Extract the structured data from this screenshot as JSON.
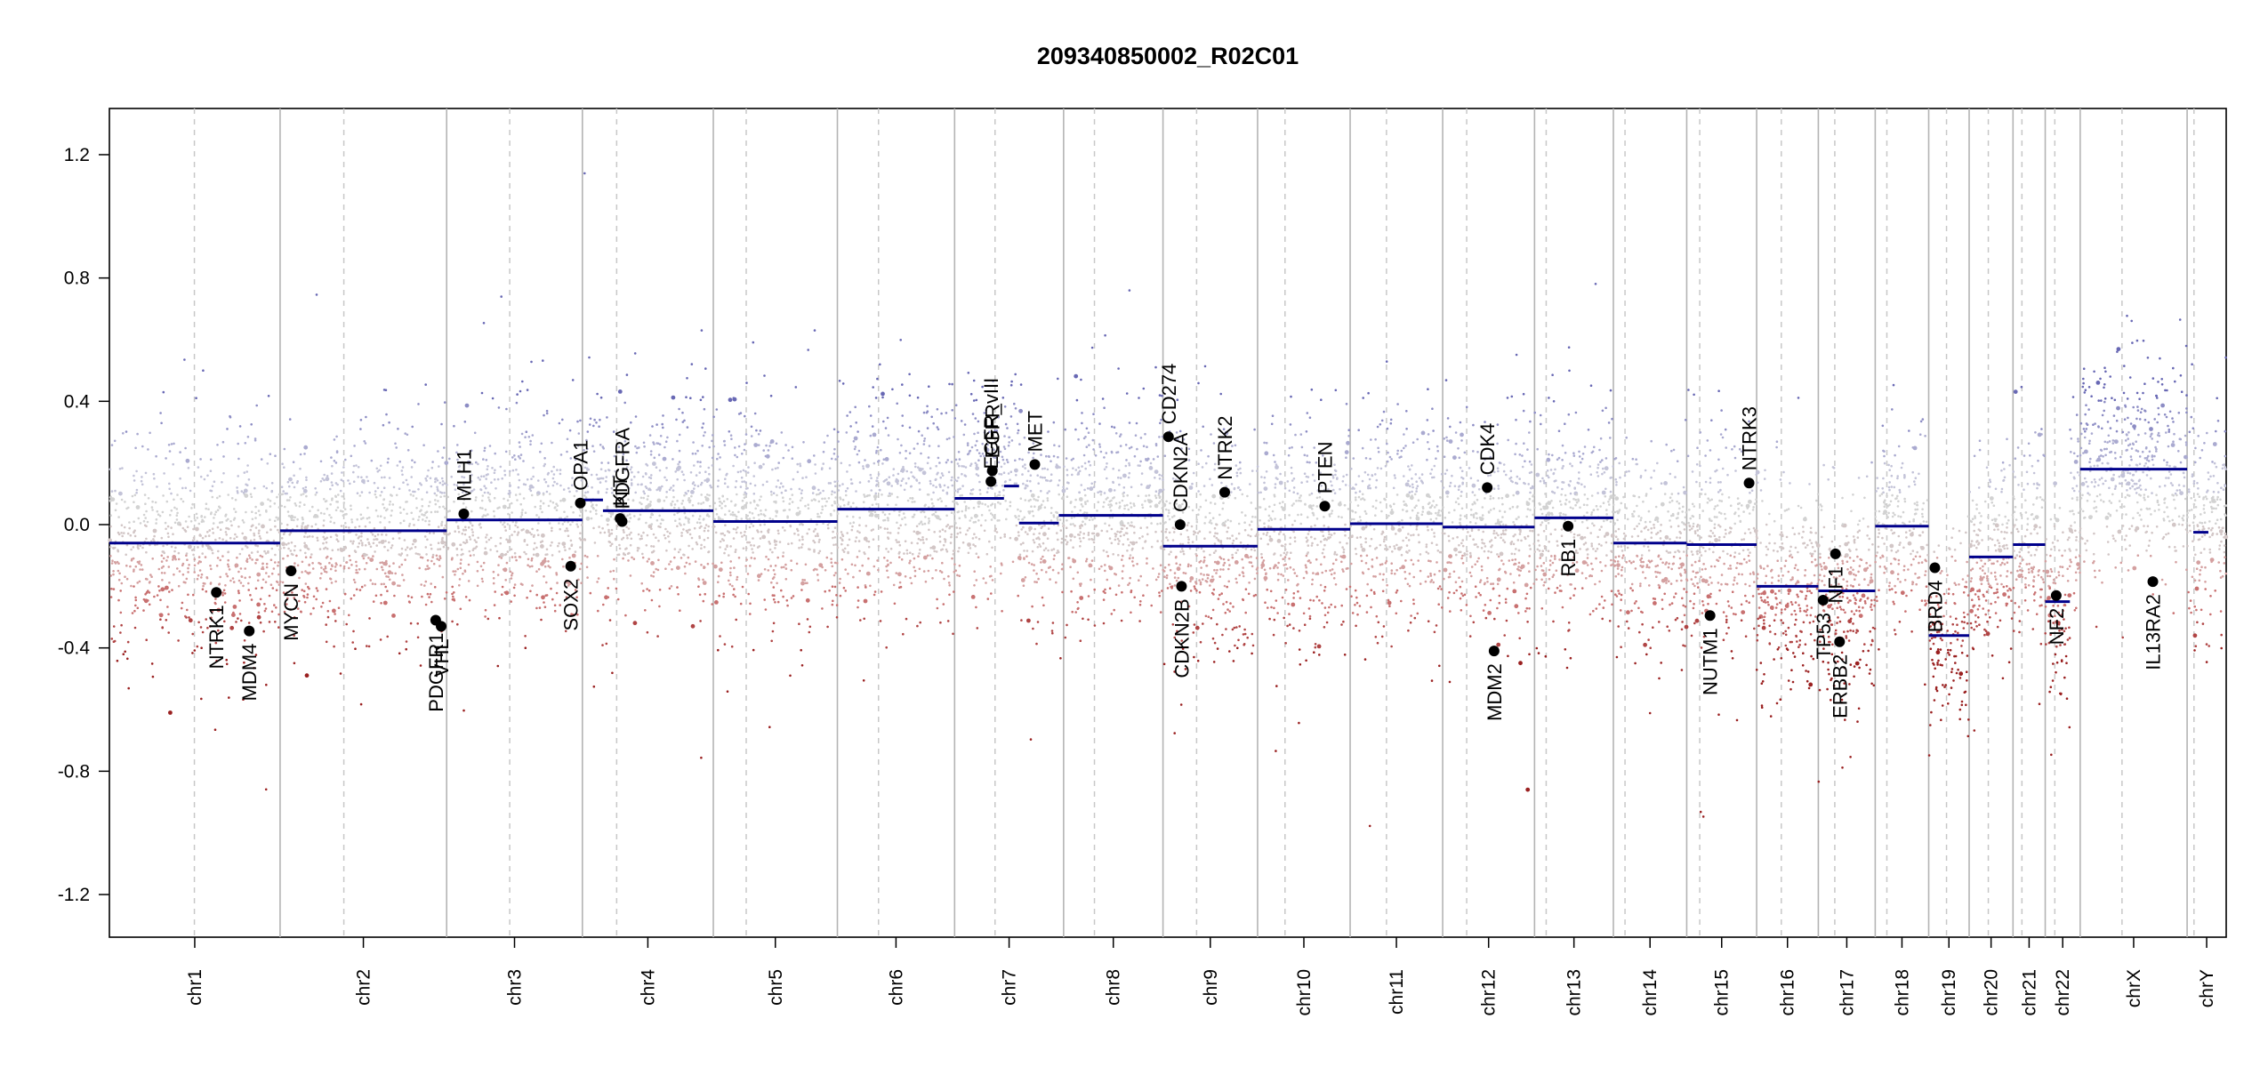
{
  "chart_data": {
    "type": "scatter",
    "title": "209340850002_R02C01",
    "xlabel": "",
    "ylabel": "",
    "ylim": [
      -1.35,
      1.35
    ],
    "yticks": [
      -1.2,
      -0.8,
      -0.4,
      0.0,
      0.4,
      0.8,
      1.2
    ],
    "ytick_labels": [
      "-1.2",
      "-0.8",
      "-0.4",
      "0.0",
      "0.4",
      "0.8",
      "1.2"
    ],
    "colors": {
      "gain": "#3a3aa0",
      "loss": "#a52a2a",
      "neutral": "#9a9a9a",
      "segment": "#00008b",
      "gene": "#000000",
      "grid_solid": "#b4b4b4",
      "grid_dashed": "#c8c8c8"
    },
    "chromosomes": [
      {
        "name": "chr1",
        "start": 0,
        "end": 249,
        "centromere": 124
      },
      {
        "name": "chr2",
        "start": 249,
        "end": 492,
        "centromere": 342
      },
      {
        "name": "chr3",
        "start": 492,
        "end": 690,
        "centromere": 584
      },
      {
        "name": "chr4",
        "start": 690,
        "end": 881,
        "centromere": 740
      },
      {
        "name": "chr5",
        "start": 881,
        "end": 1062,
        "centromere": 929
      },
      {
        "name": "chr6",
        "start": 1062,
        "end": 1233,
        "centromere": 1122
      },
      {
        "name": "chr7",
        "start": 1233,
        "end": 1392,
        "centromere": 1292
      },
      {
        "name": "chr8",
        "start": 1392,
        "end": 1537,
        "centromere": 1437
      },
      {
        "name": "chr9",
        "start": 1537,
        "end": 1675,
        "centromere": 1586
      },
      {
        "name": "chr10",
        "start": 1675,
        "end": 1810,
        "centromere": 1715
      },
      {
        "name": "chr11",
        "start": 1810,
        "end": 1945,
        "centromere": 1863
      },
      {
        "name": "chr12",
        "start": 1945,
        "end": 2079,
        "centromere": 1980
      },
      {
        "name": "chr13",
        "start": 2079,
        "end": 2194,
        "centromere": 2096
      },
      {
        "name": "chr14",
        "start": 2194,
        "end": 2301,
        "centromere": 2211
      },
      {
        "name": "chr15",
        "start": 2301,
        "end": 2403,
        "centromere": 2320
      },
      {
        "name": "chr16",
        "start": 2403,
        "end": 2493,
        "centromere": 2439
      },
      {
        "name": "chr17",
        "start": 2493,
        "end": 2576,
        "centromere": 2517
      },
      {
        "name": "chr18",
        "start": 2576,
        "end": 2654,
        "centromere": 2593
      },
      {
        "name": "chr19",
        "start": 2654,
        "end": 2713,
        "centromere": 2680
      },
      {
        "name": "chr20",
        "start": 2713,
        "end": 2777,
        "centromere": 2741
      },
      {
        "name": "chr21",
        "start": 2777,
        "end": 2824,
        "centromere": 2790
      },
      {
        "name": "chr22",
        "start": 2824,
        "end": 2875,
        "centromere": 2838
      },
      {
        "name": "chrX",
        "start": 2875,
        "end": 3031,
        "centromere": 2936
      },
      {
        "name": "chrY",
        "start": 3031,
        "end": 3088,
        "centromere": 3041
      }
    ],
    "segments": [
      {
        "start": 0,
        "end": 249,
        "value": -0.06
      },
      {
        "start": 249,
        "end": 492,
        "value": -0.02
      },
      {
        "start": 492,
        "end": 690,
        "value": 0.015
      },
      {
        "start": 690,
        "end": 720,
        "value": 0.08
      },
      {
        "start": 720,
        "end": 881,
        "value": 0.045
      },
      {
        "start": 881,
        "end": 1062,
        "value": 0.01
      },
      {
        "start": 1062,
        "end": 1233,
        "value": 0.05
      },
      {
        "start": 1233,
        "end": 1305,
        "value": 0.085
      },
      {
        "start": 1305,
        "end": 1327,
        "value": 0.125
      },
      {
        "start": 1327,
        "end": 1385,
        "value": 0.005
      },
      {
        "start": 1385,
        "end": 1537,
        "value": 0.03
      },
      {
        "start": 1537,
        "end": 1675,
        "value": -0.07
      },
      {
        "start": 1675,
        "end": 1810,
        "value": -0.015
      },
      {
        "start": 1810,
        "end": 1945,
        "value": 0.003
      },
      {
        "start": 1945,
        "end": 2079,
        "value": -0.008
      },
      {
        "start": 2079,
        "end": 2194,
        "value": 0.022
      },
      {
        "start": 2194,
        "end": 2301,
        "value": -0.06
      },
      {
        "start": 2301,
        "end": 2403,
        "value": -0.065
      },
      {
        "start": 2403,
        "end": 2493,
        "value": -0.2
      },
      {
        "start": 2493,
        "end": 2576,
        "value": -0.215
      },
      {
        "start": 2576,
        "end": 2654,
        "value": -0.005
      },
      {
        "start": 2654,
        "end": 2713,
        "value": -0.36
      },
      {
        "start": 2713,
        "end": 2777,
        "value": -0.105
      },
      {
        "start": 2777,
        "end": 2824,
        "value": -0.065
      },
      {
        "start": 2824,
        "end": 2860,
        "value": -0.25
      },
      {
        "start": 2875,
        "end": 3031,
        "value": 0.18
      },
      {
        "start": 3040,
        "end": 3062,
        "value": -0.025
      }
    ],
    "genes": [
      {
        "name": "NTRK1",
        "x": 156,
        "y": -0.22
      },
      {
        "name": "MDM4",
        "x": 204,
        "y": -0.345
      },
      {
        "name": "MYCN",
        "x": 265,
        "y": -0.15
      },
      {
        "name": "PDGFR1",
        "x": 476,
        "y": -0.31
      },
      {
        "name": "VHL",
        "x": 484,
        "y": -0.33
      },
      {
        "name": "MLH1",
        "x": 517,
        "y": 0.035
      },
      {
        "name": "SOX2",
        "x": 673,
        "y": -0.135
      },
      {
        "name": "OPA1",
        "x": 687,
        "y": 0.07
      },
      {
        "name": "KIT",
        "x": 745,
        "y": 0.02
      },
      {
        "name": "PDGFRA",
        "x": 748,
        "y": 0.01
      },
      {
        "name": "EGFR_vIII",
        "x": 1286,
        "y": 0.14
      },
      {
        "name": "EGFR",
        "x": 1288,
        "y": 0.175
      },
      {
        "name": "MET",
        "x": 1350,
        "y": 0.195
      },
      {
        "name": "CD274",
        "x": 1545,
        "y": 0.285
      },
      {
        "name": "CDKN2A",
        "x": 1562,
        "y": 0.0
      },
      {
        "name": "CDKN2B",
        "x": 1564,
        "y": -0.2
      },
      {
        "name": "NTRK2",
        "x": 1627,
        "y": 0.105
      },
      {
        "name": "PTEN",
        "x": 1773,
        "y": 0.06
      },
      {
        "name": "CDK4",
        "x": 2010,
        "y": 0.12
      },
      {
        "name": "MDM2",
        "x": 2020,
        "y": -0.41
      },
      {
        "name": "RB1",
        "x": 2128,
        "y": -0.005
      },
      {
        "name": "NUTM1",
        "x": 2335,
        "y": -0.295
      },
      {
        "name": "NTRK3",
        "x": 2392,
        "y": 0.135
      },
      {
        "name": "TP53",
        "x": 2500,
        "y": -0.245
      },
      {
        "name": "NF1",
        "x": 2518,
        "y": -0.095
      },
      {
        "name": "ERBB2",
        "x": 2524,
        "y": -0.38
      },
      {
        "name": "BRD4",
        "x": 2663,
        "y": -0.14
      },
      {
        "name": "NF2",
        "x": 2840,
        "y": -0.23
      },
      {
        "name": "IL13RA2",
        "x": 2981,
        "y": -0.185
      }
    ]
  }
}
